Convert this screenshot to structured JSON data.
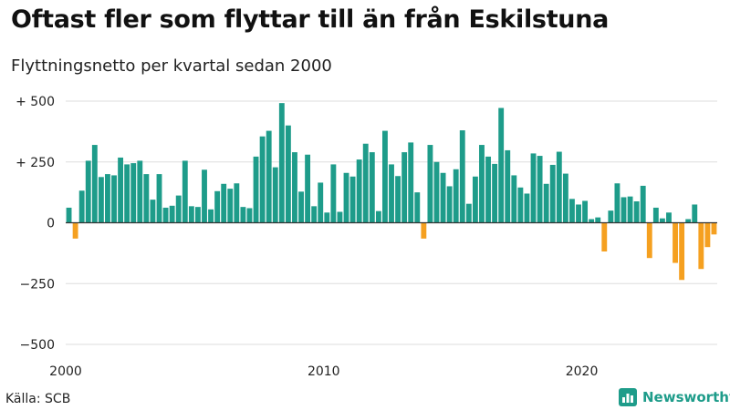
{
  "title": "Oftast fler som flyttar till än från Eskilstuna",
  "subtitle": "Flyttningsnetto per kvartal sedan 2000",
  "source": "Källa: SCB",
  "brand": "Newsworthy",
  "colors": {
    "positive": "#1e9c8a",
    "negative": "#f5a020",
    "grid": "#dddddd",
    "zero": "#333333"
  },
  "chart_data": {
    "type": "bar",
    "xlabel": "",
    "ylabel": "",
    "ylim": [
      -500,
      500
    ],
    "yticks": [
      {
        "value": 500,
        "label": "+ 500"
      },
      {
        "value": 250,
        "label": "+ 250"
      },
      {
        "value": 0,
        "label": "0"
      },
      {
        "value": -250,
        "label": "−250"
      },
      {
        "value": -500,
        "label": "−500"
      }
    ],
    "xticks": [
      {
        "value": 2000,
        "label": "2000"
      },
      {
        "value": 2010,
        "label": "2010"
      },
      {
        "value": 2020,
        "label": "2020"
      }
    ],
    "x_start_year": 2000,
    "periods_per_year": 4,
    "values": [
      62,
      -65,
      132,
      255,
      320,
      188,
      200,
      195,
      268,
      240,
      245,
      255,
      200,
      95,
      200,
      62,
      70,
      112,
      255,
      68,
      65,
      218,
      55,
      130,
      160,
      140,
      162,
      65,
      60,
      272,
      355,
      378,
      228,
      492,
      400,
      290,
      128,
      280,
      68,
      165,
      42,
      240,
      45,
      205,
      190,
      260,
      325,
      290,
      48,
      378,
      240,
      192,
      290,
      330,
      125,
      -65,
      320,
      250,
      205,
      150,
      220,
      380,
      78,
      190,
      320,
      272,
      242,
      472,
      298,
      195,
      145,
      120,
      285,
      275,
      160,
      238,
      292,
      202,
      98,
      75,
      90,
      15,
      22,
      -118,
      50,
      162,
      105,
      108,
      88,
      152,
      -145,
      62,
      18,
      42,
      -165,
      -235,
      15,
      75,
      -190,
      -100,
      -48
    ]
  }
}
